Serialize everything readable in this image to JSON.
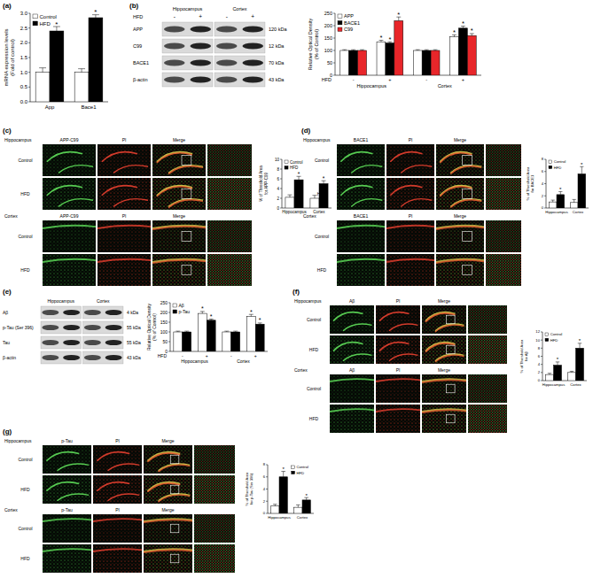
{
  "chart_data": [
    {
      "type": "bar",
      "y_label": [
        "mRNA expression levels",
        "(Fold of control)"
      ],
      "categories": [
        "App",
        "Bace1"
      ],
      "series": [
        {
          "name": "Control",
          "color": "#ffffff",
          "values": [
            1.0,
            1.0
          ],
          "errors": [
            0.15,
            0.12
          ]
        },
        {
          "name": "HFD",
          "color": "#000000",
          "values": [
            2.4,
            2.85
          ],
          "errors": [
            0.15,
            0.1
          ],
          "significance": [
            "*",
            "*"
          ]
        }
      ],
      "ylim": [
        0,
        3
      ],
      "yticks": [
        {
          "value": 0,
          "label": "0.0"
        },
        0.5,
        {
          "value": 1,
          "label": "1.0"
        },
        1.5,
        {
          "value": 2,
          "label": "2.0"
        },
        2.5,
        {
          "value": 3,
          "label": "3.0"
        }
      ],
      "legend": "upper left"
    },
    {
      "type": "bar",
      "y_label": [
        "Relative Optical Density",
        "(% of Control)"
      ],
      "categories": [
        "-",
        "+",
        "-",
        "+"
      ],
      "groups": [
        "Hippocampus",
        "Cortex"
      ],
      "x_label": "HFD",
      "series": [
        {
          "name": "APP",
          "color": "#ffffff",
          "values": [
            100,
            135,
            100,
            155
          ],
          "errors": [
            3,
            6,
            3,
            8
          ],
          "significance": [
            null,
            "*",
            null,
            "*"
          ]
        },
        {
          "name": "BACE1",
          "color": "#000000",
          "values": [
            100,
            130,
            100,
            190
          ],
          "errors": [
            3,
            5,
            3,
            8
          ],
          "significance": [
            null,
            "*",
            null,
            "*"
          ]
        },
        {
          "name": "C99",
          "color": "#e8262a",
          "values": [
            100,
            220,
            100,
            160
          ],
          "errors": [
            3,
            15,
            3,
            8
          ],
          "significance": [
            null,
            "*",
            null,
            "*"
          ]
        }
      ],
      "ylim": [
        0,
        250
      ],
      "yticks": [
        0,
        50,
        100,
        150,
        200,
        250
      ],
      "legend": "upper left"
    },
    {
      "type": "bar",
      "y_label": [
        "% of Threshold Area",
        "for APP-C99"
      ],
      "categories": [
        "Hippocampus",
        "Cortex"
      ],
      "series": [
        {
          "name": "Control",
          "color": "#ffffff",
          "values": [
            2.2,
            2.0
          ],
          "errors": [
            0.5,
            0.6
          ]
        },
        {
          "name": "HFD",
          "color": "#000000",
          "values": [
            5.8,
            5.0
          ],
          "errors": [
            0.7,
            0.6
          ],
          "significance": [
            "*",
            "*"
          ]
        }
      ],
      "ylim": [
        0,
        10
      ],
      "yticks": [
        0,
        2,
        4,
        6,
        8,
        10
      ],
      "legend": "upper left"
    },
    {
      "type": "bar",
      "y_label": [
        "% of Threshold Area",
        "for BACE1"
      ],
      "categories": [
        "Hippocampus",
        "Cortex"
      ],
      "series": [
        {
          "name": "Control",
          "color": "#ffffff",
          "values": [
            1.0,
            0.9
          ],
          "errors": [
            0.3,
            0.5
          ]
        },
        {
          "name": "HFD",
          "color": "#000000",
          "values": [
            2.2,
            5.6
          ],
          "errors": [
            0.5,
            1.2
          ],
          "significance": [
            "*",
            "*"
          ]
        }
      ],
      "ylim": [
        0,
        8
      ],
      "yticks": [
        0,
        2,
        4,
        6,
        8
      ],
      "legend": "upper left"
    },
    {
      "type": "bar",
      "y_label": [
        "Relative Optical Density",
        "(% of Control)"
      ],
      "categories": [
        "-",
        "+",
        "-",
        "+"
      ],
      "groups": [
        "Hippocampus",
        "Cortex"
      ],
      "x_label": "HFD",
      "series": [
        {
          "name": "Aβ",
          "color": "#ffffff",
          "values": [
            100,
            195,
            100,
            180
          ],
          "errors": [
            4,
            10,
            4,
            10
          ],
          "significance": [
            null,
            "*",
            null,
            "*"
          ]
        },
        {
          "name": "p-Tau",
          "color": "#000000",
          "values": [
            100,
            160,
            100,
            140
          ],
          "errors": [
            4,
            6,
            4,
            6
          ],
          "significance": [
            null,
            "*",
            null,
            "*"
          ]
        }
      ],
      "ylim": [
        0,
        250
      ],
      "yticks": [
        0,
        50,
        100,
        150,
        200,
        250
      ],
      "legend": "upper left"
    },
    {
      "type": "bar",
      "y_label": [
        "% of Threshold Area",
        "for Aβ"
      ],
      "categories": [
        "Hippocampus",
        "Cortex"
      ],
      "series": [
        {
          "name": "Control",
          "color": "#ffffff",
          "values": [
            1.5,
            2.0
          ],
          "errors": [
            0.3,
            0.3
          ]
        },
        {
          "name": "HFD",
          "color": "#000000",
          "values": [
            3.8,
            8.0
          ],
          "errors": [
            0.8,
            1.2
          ],
          "significance": [
            "*",
            "*"
          ]
        }
      ],
      "ylim": [
        0,
        12
      ],
      "yticks": [
        0,
        2,
        4,
        6,
        8,
        10,
        12
      ],
      "legend": "upper left"
    },
    {
      "type": "bar",
      "y_label": [
        "% of Threshold Area",
        "for p-Tau (Ser 396)"
      ],
      "categories": [
        "Hippocampus",
        "Cortex"
      ],
      "series": [
        {
          "name": "Control",
          "color": "#ffffff",
          "values": [
            1.2,
            1.0
          ],
          "errors": [
            0.3,
            0.4
          ]
        },
        {
          "name": "HFD",
          "color": "#000000",
          "values": [
            6.0,
            2.2
          ],
          "errors": [
            0.9,
            0.4
          ],
          "significance": [
            "*",
            "*"
          ]
        }
      ],
      "ylim": [
        0,
        8
      ],
      "yticks": [
        0,
        2,
        4,
        6,
        8
      ],
      "legend": "upper right"
    }
  ],
  "panels": [
    {
      "label": "(a)"
    },
    {
      "label": "(b)",
      "blot": {
        "regions": [
          "Hippocampus",
          "Cortex"
        ],
        "row_label": "HFD",
        "lanes": [
          "-",
          "+",
          "-",
          "+"
        ],
        "bands": [
          {
            "name": "APP",
            "size": "120 kDa"
          },
          {
            "name": "C99",
            "size": "12 kDa"
          },
          {
            "name": "BACE1",
            "size": "70 kDa"
          },
          {
            "name": "β-actin",
            "size": "43 kDa"
          }
        ]
      }
    },
    {
      "label": "(c)",
      "images": {
        "columns": [
          "APP-C99",
          "PI",
          "Merge"
        ],
        "blocks": [
          {
            "region": "Hippocampus",
            "rows": [
              "Control",
              "HFD"
            ]
          },
          {
            "region": "Cortex",
            "rows": [
              "Control",
              "HFD"
            ]
          }
        ]
      }
    },
    {
      "label": "(d)",
      "images": {
        "columns": [
          "BACE1",
          "PI",
          "Merge"
        ],
        "blocks": [
          {
            "region": "Hippocampus",
            "rows": [
              "Control",
              "HFD"
            ]
          },
          {
            "region": "Cortex",
            "rows": [
              "Control",
              "HFD"
            ]
          }
        ]
      }
    },
    {
      "label": "(e)",
      "blot": {
        "regions": [
          "Hippocampus",
          "Cortex"
        ],
        "bands": [
          {
            "name": "Aβ",
            "size": "4 kDa"
          },
          {
            "name": "p-Tau (Ser 396)",
            "size": "55 kDa"
          },
          {
            "name": "Tau",
            "size": "55 kDa"
          },
          {
            "name": "β-actin",
            "size": "43 kDa"
          }
        ]
      }
    },
    {
      "label": "(f)",
      "images": {
        "columns": [
          "Aβ",
          "PI",
          "Merge"
        ],
        "blocks": [
          {
            "region": "Hippocampus",
            "rows": [
              "Control",
              "HFD"
            ]
          },
          {
            "region": "Cortex",
            "rows": [
              "Control",
              "HFD"
            ]
          }
        ]
      }
    },
    {
      "label": "(g)",
      "images": {
        "columns": [
          "p-Tau",
          "PI",
          "Merge"
        ],
        "blocks": [
          {
            "region": "Hippocampus",
            "rows": [
              "Control",
              "HFD"
            ]
          },
          {
            "region": "Cortex",
            "rows": [
              "Control",
              "HFD"
            ]
          }
        ]
      }
    }
  ]
}
